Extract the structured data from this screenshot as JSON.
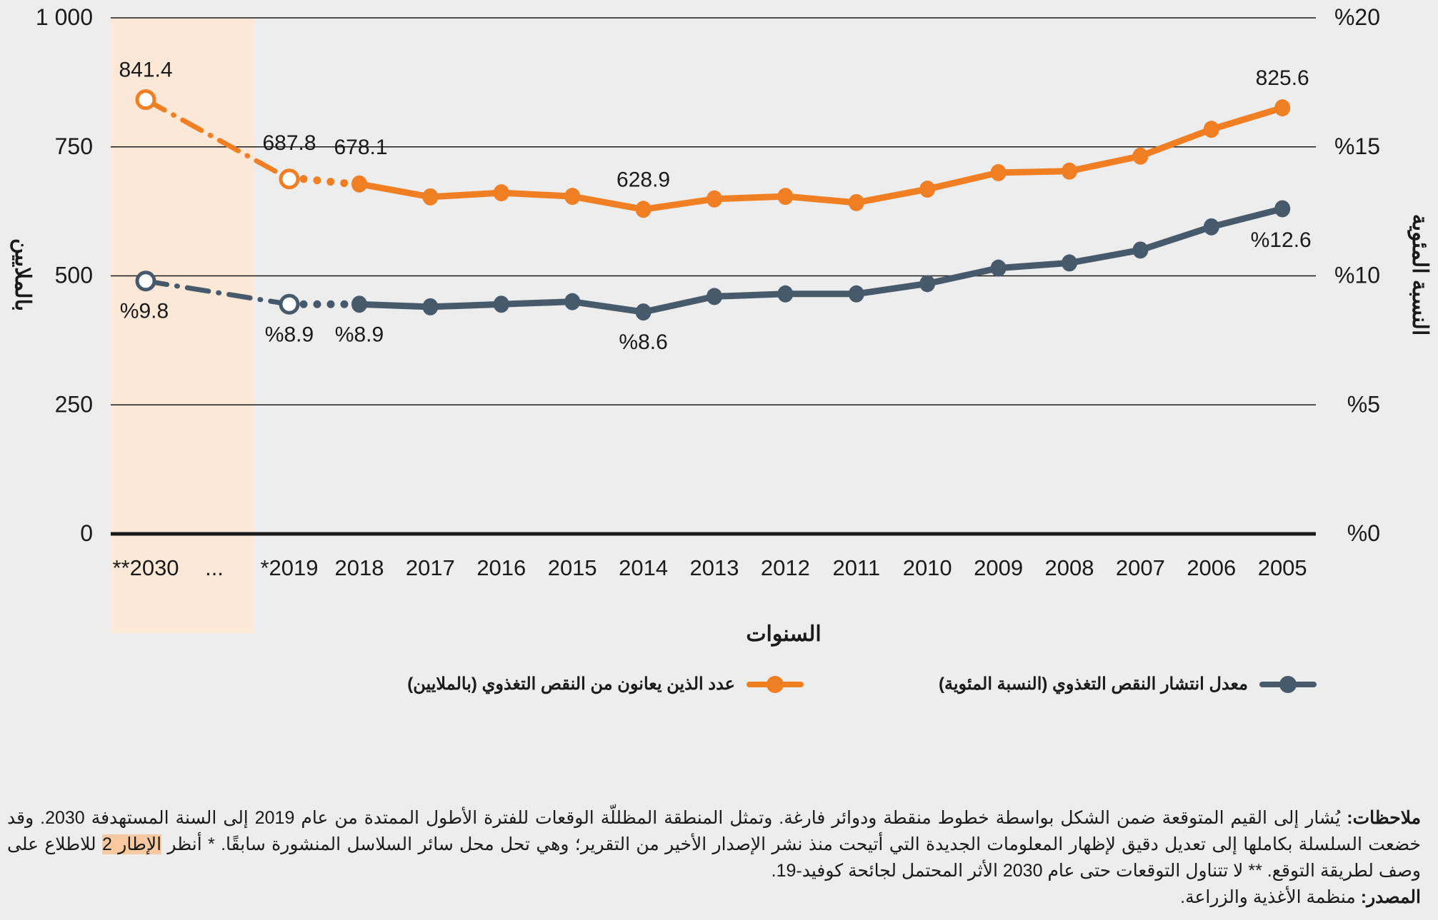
{
  "colors": {
    "background": "#ededed",
    "forecast_band": "#fde8d7",
    "orange": "#f07f24",
    "slate": "#475a6b",
    "grid": "#1a1a1a"
  },
  "chart_data": {
    "type": "line",
    "title": "",
    "xlabel": "السنوات",
    "ylabel_left": "بالملايين",
    "ylabel_right": "النسبة المئوية",
    "ylim_left": [
      0,
      1000
    ],
    "ylim_right": [
      0,
      20
    ],
    "yticks_left": [
      "0",
      "250",
      "500",
      "750",
      "1 000"
    ],
    "yticks_left_values": [
      0,
      250,
      500,
      750,
      1000
    ],
    "yticks_right": [
      "%0",
      "%5",
      "%10",
      "%15",
      "%20"
    ],
    "yticks_right_values": [
      0,
      5,
      10,
      15,
      20
    ],
    "grid": true,
    "x_direction": "right-to-left",
    "categories": [
      "2030**",
      "...",
      "2019*",
      "2018",
      "2017",
      "2016",
      "2015",
      "2014",
      "2013",
      "2012",
      "2011",
      "2010",
      "2009",
      "2008",
      "2007",
      "2006",
      "2005"
    ],
    "category_labels": [
      "**2030",
      "...",
      "*2019",
      "2018",
      "2017",
      "2016",
      "2015",
      "2014",
      "2013",
      "2012",
      "2011",
      "2010",
      "2009",
      "2008",
      "2007",
      "2006",
      "2005"
    ],
    "shaded_region": {
      "from": "2030**",
      "to": "...",
      "meaning": "projection"
    },
    "series": [
      {
        "name": "عدد الذين يعانون من النقص التغذوي (بالملايين)",
        "axis": "left",
        "color": "#f07f24",
        "values": [
          841.4,
          null,
          687.8,
          678.1,
          653,
          661,
          654,
          628.9,
          649,
          654,
          642,
          668,
          700,
          703,
          732,
          784,
          825.6
        ],
        "projected": [
          true,
          null,
          true,
          false,
          false,
          false,
          false,
          false,
          false,
          false,
          false,
          false,
          false,
          false,
          false,
          false,
          false
        ],
        "data_labels": {
          "2030**": "841.4",
          "2019*": "687.8",
          "2018": "678.1",
          "2014": "628.9",
          "2005": "825.6"
        }
      },
      {
        "name": "معدل انتشار النقص التغذوي (النسبة المئوية)",
        "axis": "right",
        "color": "#475a6b",
        "values": [
          9.8,
          null,
          8.9,
          8.9,
          8.8,
          8.9,
          9.0,
          8.6,
          9.2,
          9.3,
          9.3,
          9.7,
          10.3,
          10.5,
          11.0,
          11.9,
          12.6
        ],
        "projected": [
          true,
          null,
          true,
          false,
          false,
          false,
          false,
          false,
          false,
          false,
          false,
          false,
          false,
          false,
          false,
          false,
          false
        ],
        "data_labels": {
          "2030**": "%9.8",
          "2019*": "%8.9",
          "2018": "%8.9",
          "2014": "%8.6",
          "2005": "%12.6"
        }
      }
    ],
    "legend": {
      "placement": "bottom",
      "items": [
        {
          "label": "معدل انتشار النقص التغذوي (النسبة المئوية)",
          "color": "#475a6b"
        },
        {
          "label": "عدد الذين يعانون من النقص التغذوي (بالملايين)",
          "color": "#f07f24"
        }
      ]
    }
  },
  "notes": {
    "label": "ملاحظات:",
    "text_before_highlight": " يُشار إلى القيم المتوقعة ضمن الشكل بواسطة خطوط منقطة ودوائر فارغة. وتمثل المنطقة المظللّة الوقعات للفترة الأطول الممتدة من عام 2019 إلى السنة المستهدفة 2030. وقد خضعت السلسلة بكاملها إلى تعديل دقيق لإظهار المعلومات الجديدة التي أتيحت منذ نشر الإصدار الأخير من التقرير؛ وهي تحل محل سائر السلاسل المنشورة سابقًا. * أنظر ",
    "highlight": "الإطار 2",
    "text_after_highlight": " للاطلاع على وصف لطريقة التوقع. ** لا تتناول التوقعات حتى عام 2030 الأثر المحتمل لجائحة كوفيد-19.",
    "source_label": "المصدر:",
    "source_text": " منظمة الأغذية والزراعة."
  }
}
